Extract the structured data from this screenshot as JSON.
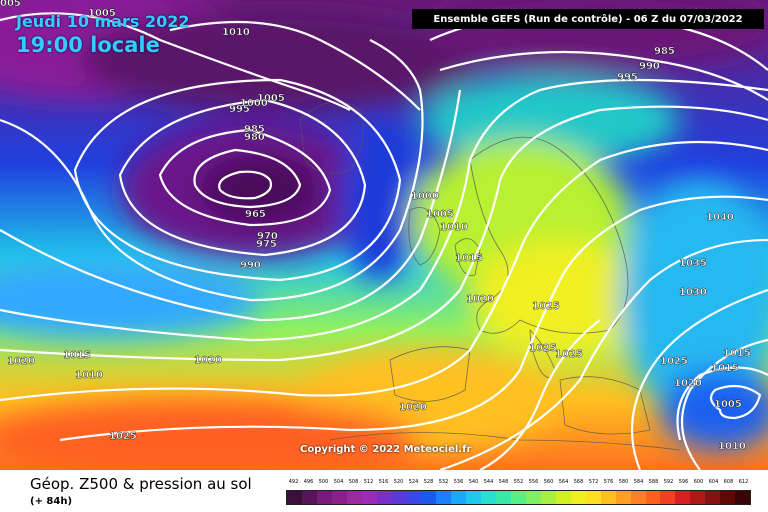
{
  "header": {
    "date": "Jeudi 10 mars 2022",
    "time": "19:00 locale",
    "run": "Ensemble GEFS  (Run de contrôle)  -  06 Z du 07/03/2022"
  },
  "map": {
    "copyright": "Copyright © 2022 Meteociel.fr",
    "isobar_labels": [
      {
        "id": "l1",
        "text": "1005"
      },
      {
        "id": "l2",
        "text": "1010"
      },
      {
        "id": "l3",
        "text": "1005"
      },
      {
        "id": "l4",
        "text": "1000"
      },
      {
        "id": "l5",
        "text": "995"
      },
      {
        "id": "l6",
        "text": "985"
      },
      {
        "id": "l7",
        "text": "980"
      },
      {
        "id": "l8",
        "text": "965"
      },
      {
        "id": "l9",
        "text": "970"
      },
      {
        "id": "l10",
        "text": "975"
      },
      {
        "id": "l11",
        "text": "990"
      },
      {
        "id": "l12",
        "text": "1000"
      },
      {
        "id": "l13",
        "text": "1005"
      },
      {
        "id": "l14",
        "text": "1010"
      },
      {
        "id": "l15",
        "text": "1015"
      },
      {
        "id": "l16",
        "text": "1020"
      },
      {
        "id": "l17",
        "text": "1025"
      },
      {
        "id": "l18",
        "text": "1025"
      },
      {
        "id": "l19",
        "text": "1025"
      },
      {
        "id": "l20",
        "text": "1020"
      },
      {
        "id": "l21",
        "text": "1020"
      },
      {
        "id": "l22",
        "text": "1015"
      },
      {
        "id": "l23",
        "text": "1010"
      },
      {
        "id": "l24",
        "text": "1020"
      },
      {
        "id": "l25",
        "text": "1025"
      },
      {
        "id": "l26",
        "text": "1040"
      },
      {
        "id": "l27",
        "text": "1035"
      },
      {
        "id": "l28",
        "text": "1030"
      },
      {
        "id": "l29",
        "text": "1025"
      },
      {
        "id": "l30",
        "text": "1020"
      },
      {
        "id": "l31",
        "text": "1015"
      },
      {
        "id": "l32",
        "text": "1015"
      },
      {
        "id": "l33",
        "text": "1005"
      },
      {
        "id": "l34",
        "text": "1010"
      },
      {
        "id": "l35",
        "text": "985"
      },
      {
        "id": "l36",
        "text": "990"
      },
      {
        "id": "l37",
        "text": "995"
      },
      {
        "id": "l38",
        "text": "005"
      }
    ]
  },
  "legend": {
    "title": "Géop. Z500 & pression au sol",
    "subtitle": "(+ 84h)",
    "scale_values": [
      "492",
      "496",
      "500",
      "504",
      "508",
      "512",
      "516",
      "520",
      "524",
      "528",
      "532",
      "536",
      "540",
      "544",
      "548",
      "552",
      "556",
      "560",
      "564",
      "568",
      "572",
      "576",
      "580",
      "584",
      "588",
      "592",
      "596",
      "600",
      "604",
      "608",
      "612"
    ],
    "scale_colors": [
      "#3a0f3a",
      "#5a145a",
      "#7a1a7a",
      "#8a208a",
      "#9a2aa0",
      "#9c2cb8",
      "#7a30c8",
      "#5a3ad8",
      "#3a48e8",
      "#1a5af0",
      "#1a80ff",
      "#1aa8ff",
      "#20c8f0",
      "#28e0d0",
      "#38e8a8",
      "#58f080",
      "#80f060",
      "#a8f040",
      "#d0f020",
      "#f0f020",
      "#ffe020",
      "#ffc020",
      "#ffa020",
      "#ff8020",
      "#ff6020",
      "#f04020",
      "#d82020",
      "#b01818",
      "#881010",
      "#600808",
      "#380404"
    ]
  }
}
